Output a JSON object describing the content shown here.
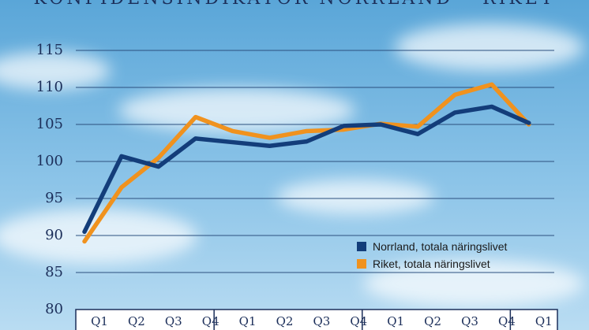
{
  "chart_data": {
    "type": "line",
    "title": "KONFIDENSINDIKATOR NORRLAND – RIKET",
    "x": [
      "Q1",
      "Q2",
      "Q3",
      "Q4",
      "Q1",
      "Q2",
      "Q3",
      "Q4",
      "Q1",
      "Q2",
      "Q3",
      "Q4",
      "Q1"
    ],
    "ylim": [
      80,
      115
    ],
    "yticks": [
      "80",
      "85",
      "90",
      "95",
      "100",
      "105",
      "110",
      "115"
    ],
    "grid": true,
    "legend_position": "bottom-right",
    "series": [
      {
        "name": "Norrland, totala näringslivet",
        "color": "#133d7a",
        "values": [
          90.5,
          100.7,
          99.3,
          103.1,
          102.6,
          102.1,
          102.7,
          104.8,
          105.0,
          103.7,
          106.6,
          107.4,
          105.2
        ]
      },
      {
        "name": "Riket, totala näringslivet",
        "color": "#f0921e",
        "values": [
          89.2,
          96.5,
          100.5,
          106.0,
          104.1,
          103.2,
          104.1,
          104.3,
          105.1,
          104.7,
          109.0,
          110.4,
          105.0
        ]
      }
    ]
  }
}
